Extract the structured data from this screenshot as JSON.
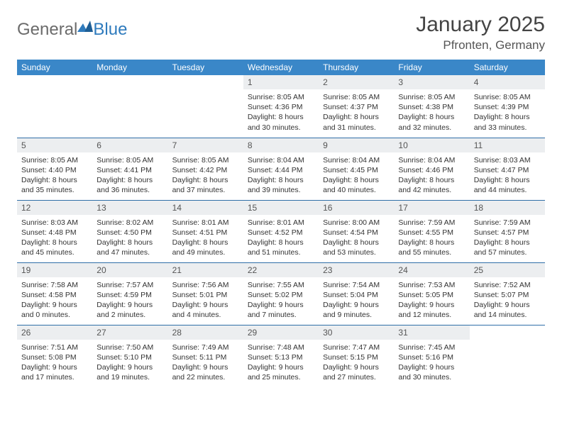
{
  "logo": {
    "part1": "General",
    "part2": "Blue"
  },
  "title": {
    "month": "January 2025",
    "location": "Pfronten, Germany"
  },
  "colors": {
    "header_bg": "#3a87c8",
    "header_text": "#ffffff",
    "daynum_bg": "#eceef0",
    "row_border": "#2f6fa8",
    "logo_gray": "#6b6b6b",
    "logo_blue": "#2f7bbd"
  },
  "days_of_week": [
    "Sunday",
    "Monday",
    "Tuesday",
    "Wednesday",
    "Thursday",
    "Friday",
    "Saturday"
  ],
  "weeks": [
    [
      {
        "num": "",
        "sunrise": "",
        "sunset": "",
        "daylight": ""
      },
      {
        "num": "",
        "sunrise": "",
        "sunset": "",
        "daylight": ""
      },
      {
        "num": "",
        "sunrise": "",
        "sunset": "",
        "daylight": ""
      },
      {
        "num": "1",
        "sunrise": "Sunrise: 8:05 AM",
        "sunset": "Sunset: 4:36 PM",
        "daylight": "Daylight: 8 hours and 30 minutes."
      },
      {
        "num": "2",
        "sunrise": "Sunrise: 8:05 AM",
        "sunset": "Sunset: 4:37 PM",
        "daylight": "Daylight: 8 hours and 31 minutes."
      },
      {
        "num": "3",
        "sunrise": "Sunrise: 8:05 AM",
        "sunset": "Sunset: 4:38 PM",
        "daylight": "Daylight: 8 hours and 32 minutes."
      },
      {
        "num": "4",
        "sunrise": "Sunrise: 8:05 AM",
        "sunset": "Sunset: 4:39 PM",
        "daylight": "Daylight: 8 hours and 33 minutes."
      }
    ],
    [
      {
        "num": "5",
        "sunrise": "Sunrise: 8:05 AM",
        "sunset": "Sunset: 4:40 PM",
        "daylight": "Daylight: 8 hours and 35 minutes."
      },
      {
        "num": "6",
        "sunrise": "Sunrise: 8:05 AM",
        "sunset": "Sunset: 4:41 PM",
        "daylight": "Daylight: 8 hours and 36 minutes."
      },
      {
        "num": "7",
        "sunrise": "Sunrise: 8:05 AM",
        "sunset": "Sunset: 4:42 PM",
        "daylight": "Daylight: 8 hours and 37 minutes."
      },
      {
        "num": "8",
        "sunrise": "Sunrise: 8:04 AM",
        "sunset": "Sunset: 4:44 PM",
        "daylight": "Daylight: 8 hours and 39 minutes."
      },
      {
        "num": "9",
        "sunrise": "Sunrise: 8:04 AM",
        "sunset": "Sunset: 4:45 PM",
        "daylight": "Daylight: 8 hours and 40 minutes."
      },
      {
        "num": "10",
        "sunrise": "Sunrise: 8:04 AM",
        "sunset": "Sunset: 4:46 PM",
        "daylight": "Daylight: 8 hours and 42 minutes."
      },
      {
        "num": "11",
        "sunrise": "Sunrise: 8:03 AM",
        "sunset": "Sunset: 4:47 PM",
        "daylight": "Daylight: 8 hours and 44 minutes."
      }
    ],
    [
      {
        "num": "12",
        "sunrise": "Sunrise: 8:03 AM",
        "sunset": "Sunset: 4:48 PM",
        "daylight": "Daylight: 8 hours and 45 minutes."
      },
      {
        "num": "13",
        "sunrise": "Sunrise: 8:02 AM",
        "sunset": "Sunset: 4:50 PM",
        "daylight": "Daylight: 8 hours and 47 minutes."
      },
      {
        "num": "14",
        "sunrise": "Sunrise: 8:01 AM",
        "sunset": "Sunset: 4:51 PM",
        "daylight": "Daylight: 8 hours and 49 minutes."
      },
      {
        "num": "15",
        "sunrise": "Sunrise: 8:01 AM",
        "sunset": "Sunset: 4:52 PM",
        "daylight": "Daylight: 8 hours and 51 minutes."
      },
      {
        "num": "16",
        "sunrise": "Sunrise: 8:00 AM",
        "sunset": "Sunset: 4:54 PM",
        "daylight": "Daylight: 8 hours and 53 minutes."
      },
      {
        "num": "17",
        "sunrise": "Sunrise: 7:59 AM",
        "sunset": "Sunset: 4:55 PM",
        "daylight": "Daylight: 8 hours and 55 minutes."
      },
      {
        "num": "18",
        "sunrise": "Sunrise: 7:59 AM",
        "sunset": "Sunset: 4:57 PM",
        "daylight": "Daylight: 8 hours and 57 minutes."
      }
    ],
    [
      {
        "num": "19",
        "sunrise": "Sunrise: 7:58 AM",
        "sunset": "Sunset: 4:58 PM",
        "daylight": "Daylight: 9 hours and 0 minutes."
      },
      {
        "num": "20",
        "sunrise": "Sunrise: 7:57 AM",
        "sunset": "Sunset: 4:59 PM",
        "daylight": "Daylight: 9 hours and 2 minutes."
      },
      {
        "num": "21",
        "sunrise": "Sunrise: 7:56 AM",
        "sunset": "Sunset: 5:01 PM",
        "daylight": "Daylight: 9 hours and 4 minutes."
      },
      {
        "num": "22",
        "sunrise": "Sunrise: 7:55 AM",
        "sunset": "Sunset: 5:02 PM",
        "daylight": "Daylight: 9 hours and 7 minutes."
      },
      {
        "num": "23",
        "sunrise": "Sunrise: 7:54 AM",
        "sunset": "Sunset: 5:04 PM",
        "daylight": "Daylight: 9 hours and 9 minutes."
      },
      {
        "num": "24",
        "sunrise": "Sunrise: 7:53 AM",
        "sunset": "Sunset: 5:05 PM",
        "daylight": "Daylight: 9 hours and 12 minutes."
      },
      {
        "num": "25",
        "sunrise": "Sunrise: 7:52 AM",
        "sunset": "Sunset: 5:07 PM",
        "daylight": "Daylight: 9 hours and 14 minutes."
      }
    ],
    [
      {
        "num": "26",
        "sunrise": "Sunrise: 7:51 AM",
        "sunset": "Sunset: 5:08 PM",
        "daylight": "Daylight: 9 hours and 17 minutes."
      },
      {
        "num": "27",
        "sunrise": "Sunrise: 7:50 AM",
        "sunset": "Sunset: 5:10 PM",
        "daylight": "Daylight: 9 hours and 19 minutes."
      },
      {
        "num": "28",
        "sunrise": "Sunrise: 7:49 AM",
        "sunset": "Sunset: 5:11 PM",
        "daylight": "Daylight: 9 hours and 22 minutes."
      },
      {
        "num": "29",
        "sunrise": "Sunrise: 7:48 AM",
        "sunset": "Sunset: 5:13 PM",
        "daylight": "Daylight: 9 hours and 25 minutes."
      },
      {
        "num": "30",
        "sunrise": "Sunrise: 7:47 AM",
        "sunset": "Sunset: 5:15 PM",
        "daylight": "Daylight: 9 hours and 27 minutes."
      },
      {
        "num": "31",
        "sunrise": "Sunrise: 7:45 AM",
        "sunset": "Sunset: 5:16 PM",
        "daylight": "Daylight: 9 hours and 30 minutes."
      },
      {
        "num": "",
        "sunrise": "",
        "sunset": "",
        "daylight": ""
      }
    ]
  ]
}
